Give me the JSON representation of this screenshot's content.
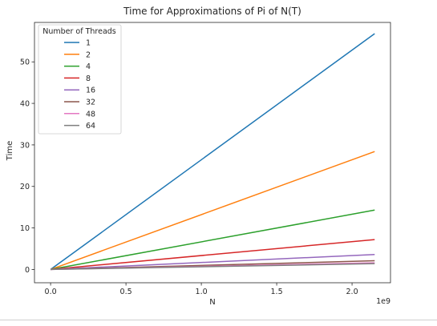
{
  "chart_data": {
    "type": "line",
    "title": "Time for Approximations of Pi of N(T)",
    "xlabel": "N",
    "ylabel": "Time",
    "x_offset_label": "1e9",
    "x_ticks": [
      {
        "value": 0.0,
        "label": "0.0"
      },
      {
        "value": 0.5,
        "label": "0.5"
      },
      {
        "value": 1.0,
        "label": "1.0"
      },
      {
        "value": 1.5,
        "label": "1.5"
      },
      {
        "value": 2.0,
        "label": "2.0"
      }
    ],
    "y_ticks": [
      {
        "value": 0,
        "label": "0"
      },
      {
        "value": 10,
        "label": "10"
      },
      {
        "value": 20,
        "label": "20"
      },
      {
        "value": 30,
        "label": "30"
      },
      {
        "value": 40,
        "label": "40"
      },
      {
        "value": 50,
        "label": "50"
      }
    ],
    "xlim": [
      -0.107,
      2.255
    ],
    "ylim": [
      -3.2,
      59.5
    ],
    "legend": {
      "title": "Number of Threads",
      "placement": "upper-left"
    },
    "series": [
      {
        "name": "1",
        "color": "#1f77b4",
        "x": [
          0,
          2.15
        ],
        "y": [
          0,
          56.8
        ]
      },
      {
        "name": "2",
        "color": "#ff7f0e",
        "x": [
          0,
          2.15
        ],
        "y": [
          0,
          28.4
        ]
      },
      {
        "name": "4",
        "color": "#2ca02c",
        "x": [
          0,
          2.15
        ],
        "y": [
          0,
          14.3
        ]
      },
      {
        "name": "8",
        "color": "#d62728",
        "x": [
          0,
          2.15
        ],
        "y": [
          0,
          7.2
        ]
      },
      {
        "name": "16",
        "color": "#9467bd",
        "x": [
          0,
          2.15
        ],
        "y": [
          0,
          3.6
        ]
      },
      {
        "name": "32",
        "color": "#8c564b",
        "x": [
          0,
          2.15
        ],
        "y": [
          0,
          2.1
        ]
      },
      {
        "name": "48",
        "color": "#e377c2",
        "x": [
          0,
          2.15
        ],
        "y": [
          0,
          1.6
        ]
      },
      {
        "name": "64",
        "color": "#7f7f7f",
        "x": [
          0,
          2.15
        ],
        "y": [
          0,
          1.4
        ]
      }
    ]
  }
}
